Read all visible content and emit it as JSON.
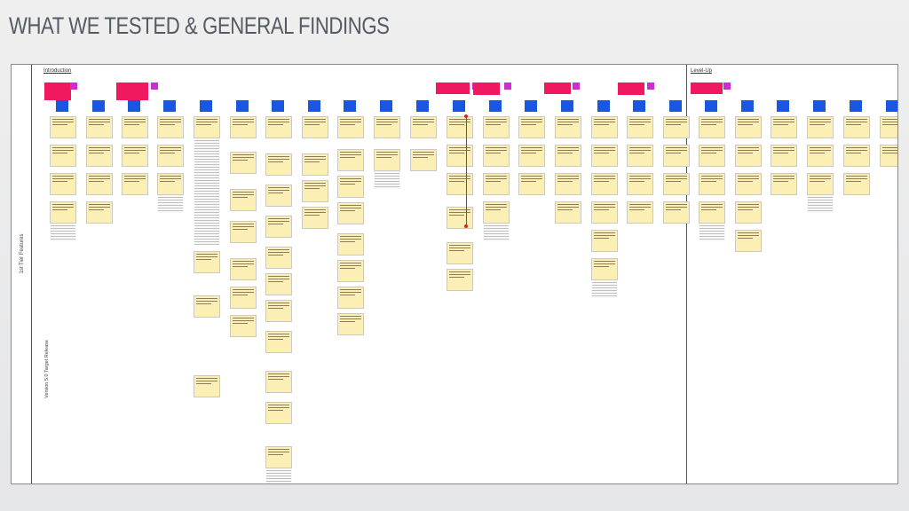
{
  "slide": {
    "title": "WHAT WE TESTED & GENERAL FINDINGS"
  },
  "board": {
    "sections": [
      {
        "label": "Introduction"
      },
      {
        "label": "Level-Up"
      }
    ],
    "row_labels": {
      "tier": "1st Tier Features",
      "release": "Version 5.0 Target Release"
    }
  }
}
